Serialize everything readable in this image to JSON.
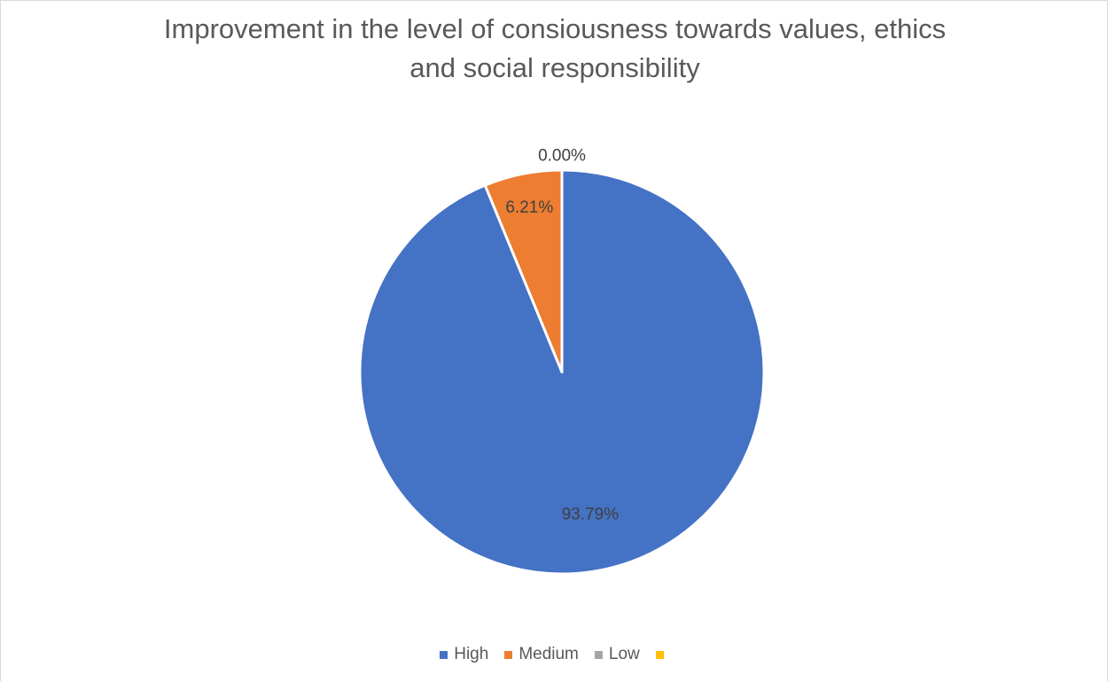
{
  "chart_data": {
    "type": "pie",
    "title_lines": [
      "Improvement in the level of consiousness towards values, ethics",
      "and social responsibility"
    ],
    "slices": [
      {
        "name": "High",
        "value": 93.79,
        "label": "93.79%",
        "color": "#4472C4"
      },
      {
        "name": "Medium",
        "value": 6.21,
        "label": "6.21%",
        "color": "#ED7D31"
      },
      {
        "name": "Low",
        "value": 0.0,
        "label": "0.00%",
        "color": "#A5A5A5"
      },
      {
        "name": "",
        "value": 0.0,
        "label": "",
        "color": "#FFC000"
      }
    ],
    "start_angle_deg": 0,
    "direction": "clockwise",
    "legend_position": "bottom"
  }
}
